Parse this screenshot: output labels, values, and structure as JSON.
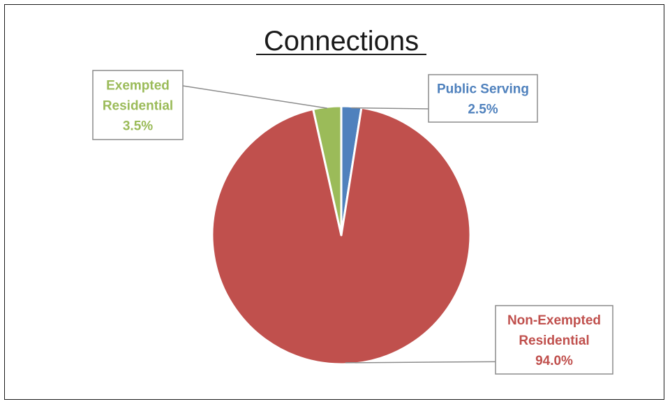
{
  "chart_data": {
    "type": "pie",
    "title": "Connections",
    "start_angle_deg": 0,
    "direction": "clockwise",
    "slices": [
      {
        "label": [
          "Public Serving"
        ],
        "value": 2.5,
        "value_label": "2.5%",
        "color": "#4f81bd",
        "label_color": "#4f81bd"
      },
      {
        "label": [
          "Non-Exempted",
          "Residential"
        ],
        "value": 94.0,
        "value_label": "94.0%",
        "color": "#c0504d",
        "label_color": "#c0504d"
      },
      {
        "label": [
          "Exempted",
          "Residential"
        ],
        "value": 3.5,
        "value_label": "3.5%",
        "color": "#9bbb59",
        "label_color": "#9bbb59"
      }
    ]
  }
}
